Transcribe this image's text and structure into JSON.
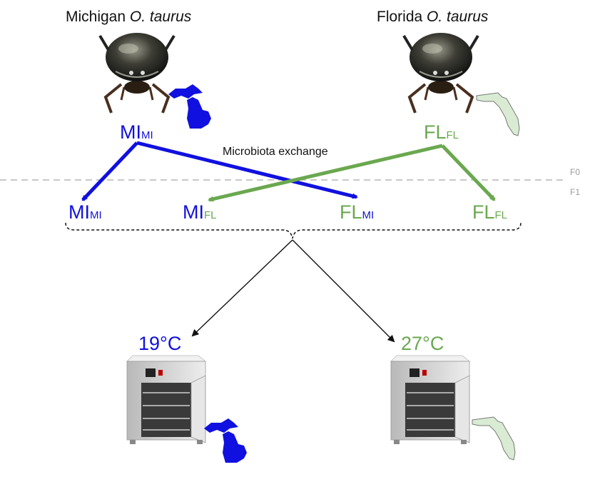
{
  "titles": {
    "michigan_prefix": "Michigan ",
    "michigan_species": "O. taurus",
    "florida_prefix": "Florida ",
    "florida_species": "O. taurus"
  },
  "parents": {
    "mi": {
      "main": "MI",
      "sub": "MI"
    },
    "fl": {
      "main": "FL",
      "sub": "FL"
    }
  },
  "exchange_label": "Microbiota exchange",
  "generations": {
    "f0": "F0",
    "f1": "F1"
  },
  "offspring": [
    {
      "main": "MI",
      "sub": "MI"
    },
    {
      "main": "MI",
      "sub": "FL"
    },
    {
      "main": "FL",
      "sub": "MI"
    },
    {
      "main": "FL",
      "sub": "FL"
    }
  ],
  "temperatures": {
    "cold": "19°C",
    "warm": "27°C"
  },
  "colors": {
    "michigan": "#1010e0",
    "florida": "#6aa84f",
    "florida_map": "#d9ecd3"
  },
  "icons": [
    "dung-beetle",
    "michigan-map",
    "florida-map",
    "incubator"
  ]
}
